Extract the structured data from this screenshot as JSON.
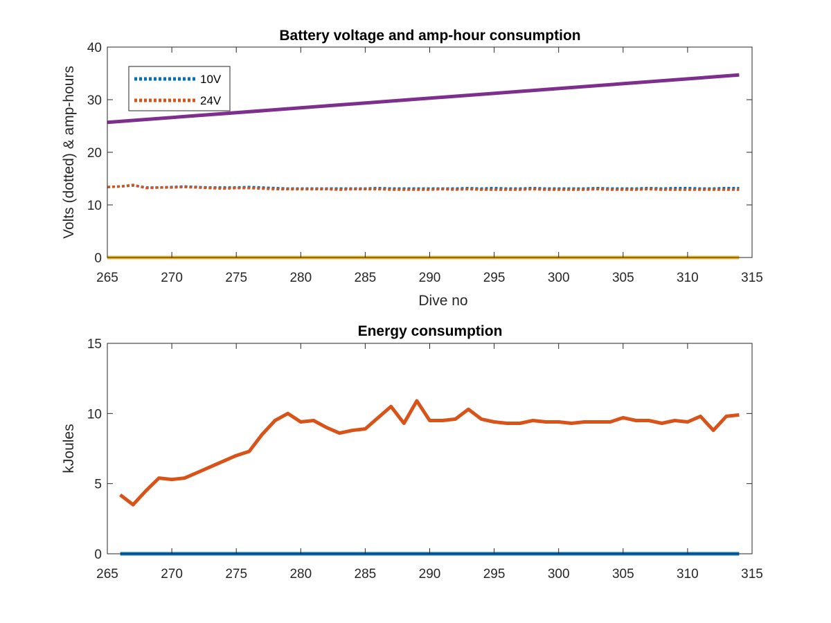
{
  "chart_data": [
    {
      "type": "line",
      "title": "Battery voltage and amp-hour consumption",
      "xlabel": "Dive no",
      "ylabel": "Volts (dotted) & amp-hours",
      "xlim": [
        265,
        315
      ],
      "ylim": [
        0,
        40
      ],
      "xticks": [
        265,
        270,
        275,
        280,
        285,
        290,
        295,
        300,
        305,
        310,
        315
      ],
      "yticks": [
        0,
        10,
        20,
        30,
        40
      ],
      "grid": false,
      "legend_position": "top-left",
      "legend": [
        "10V",
        "24V"
      ],
      "series": [
        {
          "name": "10V",
          "style": "dotted",
          "color": "#0072BD",
          "x": [
            265,
            266,
            267,
            268,
            269,
            270,
            271,
            272,
            273,
            274,
            275,
            276,
            277,
            278,
            279,
            280,
            281,
            282,
            283,
            284,
            285,
            286,
            287,
            288,
            289,
            290,
            291,
            292,
            293,
            294,
            295,
            296,
            297,
            298,
            299,
            300,
            301,
            302,
            303,
            304,
            305,
            306,
            307,
            308,
            309,
            310,
            311,
            312,
            313,
            314
          ],
          "values": [
            13.4,
            13.5,
            13.7,
            13.3,
            13.3,
            13.4,
            13.5,
            13.4,
            13.3,
            13.3,
            13.3,
            13.4,
            13.3,
            13.2,
            13.1,
            13.1,
            13.1,
            13.1,
            13.1,
            13.1,
            13.1,
            13.2,
            13.1,
            13.1,
            13.1,
            13.1,
            13.1,
            13.1,
            13.2,
            13.1,
            13.2,
            13.1,
            13.1,
            13.2,
            13.1,
            13.1,
            13.1,
            13.1,
            13.2,
            13.1,
            13.1,
            13.1,
            13.2,
            13.1,
            13.2,
            13.2,
            13.1,
            13.1,
            13.2,
            13.2
          ]
        },
        {
          "name": "24V",
          "style": "dotted",
          "color": "#D95319",
          "x": [
            265,
            266,
            267,
            268,
            269,
            270,
            271,
            272,
            273,
            274,
            275,
            276,
            277,
            278,
            279,
            280,
            281,
            282,
            283,
            284,
            285,
            286,
            287,
            288,
            289,
            290,
            291,
            292,
            293,
            294,
            295,
            296,
            297,
            298,
            299,
            300,
            301,
            302,
            303,
            304,
            305,
            306,
            307,
            308,
            309,
            310,
            311,
            312,
            313,
            314
          ],
          "values": [
            13.4,
            13.5,
            13.8,
            13.2,
            13.3,
            13.3,
            13.4,
            13.3,
            13.2,
            13.1,
            13.2,
            13.2,
            13.1,
            13.0,
            13.0,
            13.0,
            13.0,
            13.0,
            12.9,
            13.0,
            13.0,
            13.0,
            12.9,
            12.9,
            12.9,
            12.9,
            13.0,
            12.9,
            13.0,
            12.9,
            12.9,
            12.9,
            12.9,
            13.0,
            12.9,
            12.9,
            12.9,
            12.9,
            13.0,
            12.9,
            12.9,
            12.9,
            13.0,
            12.9,
            12.9,
            12.9,
            12.9,
            12.9,
            12.9,
            12.9
          ]
        },
        {
          "style": "solid",
          "color": "#7E2F8E",
          "x": [
            265,
            314
          ],
          "values": [
            25.7,
            34.7
          ]
        },
        {
          "style": "solid",
          "color": "#EDB120",
          "x": [
            265,
            314
          ],
          "values": [
            0,
            0
          ]
        }
      ]
    },
    {
      "type": "line",
      "title": "Energy consumption",
      "xlabel": "",
      "ylabel": "kJoules",
      "xlim": [
        265,
        315
      ],
      "ylim": [
        0,
        15
      ],
      "xticks": [
        265,
        270,
        275,
        280,
        285,
        290,
        295,
        300,
        305,
        310,
        315
      ],
      "yticks": [
        0,
        5,
        10,
        15
      ],
      "grid": false,
      "series": [
        {
          "style": "solid",
          "color": "#D95319",
          "x": [
            266,
            267,
            268,
            269,
            270,
            271,
            272,
            273,
            274,
            275,
            276,
            277,
            278,
            279,
            280,
            281,
            282,
            283,
            284,
            285,
            286,
            287,
            288,
            289,
            290,
            291,
            292,
            293,
            294,
            295,
            296,
            297,
            298,
            299,
            300,
            301,
            302,
            303,
            304,
            305,
            306,
            307,
            308,
            309,
            310,
            311,
            312,
            313,
            314
          ],
          "values": [
            4.2,
            3.5,
            4.5,
            5.4,
            5.3,
            5.4,
            5.8,
            6.2,
            6.6,
            7.0,
            7.3,
            8.5,
            9.5,
            10.0,
            9.4,
            9.5,
            9.0,
            8.6,
            8.8,
            8.9,
            9.7,
            10.5,
            9.3,
            10.9,
            9.5,
            9.5,
            9.6,
            10.3,
            9.6,
            9.4,
            9.3,
            9.3,
            9.5,
            9.4,
            9.4,
            9.3,
            9.4,
            9.4,
            9.4,
            9.7,
            9.5,
            9.5,
            9.3,
            9.5,
            9.4,
            9.8,
            8.8,
            9.8,
            9.9
          ]
        },
        {
          "style": "solid",
          "color": "#0072BD",
          "x": [
            266,
            314
          ],
          "values": [
            0,
            0
          ]
        }
      ]
    }
  ]
}
